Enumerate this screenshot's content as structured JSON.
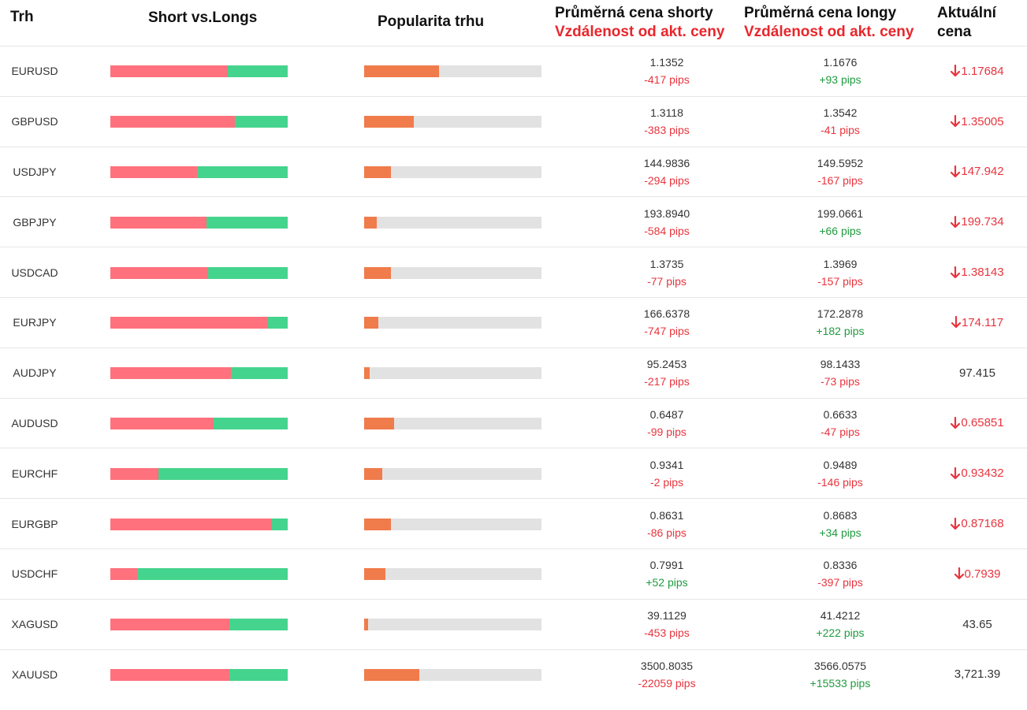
{
  "headers": {
    "market": "Trh",
    "short_vs_longs": "Short vs.Longs",
    "popularity": "Popularita trhu",
    "avg_short": "Průměrná cena shorty",
    "avg_short_sub": "Vzdálenost od akt. ceny",
    "avg_long": "Průměrná cena longy",
    "avg_long_sub": "Vzdálenost od akt. ceny",
    "current_1": "Aktuální",
    "current_2": "cena"
  },
  "colors": {
    "short": "#ff717d",
    "long": "#45d48d",
    "popularity": "#f07b4b",
    "track": "#e2e2e2",
    "negative": "#e8343d",
    "positive": "#1f9b3f"
  },
  "rows": [
    {
      "market": "EURUSD",
      "short_pct": 66,
      "popularity_pct": 42,
      "short_price": "1.1352",
      "short_pips": "-417 pips",
      "long_price": "1.1676",
      "long_pips": "+93 pips",
      "current": "1.17684",
      "arrow": "down-arrow-icon"
    },
    {
      "market": "GBPUSD",
      "short_pct": 70,
      "popularity_pct": 28,
      "short_price": "1.3118",
      "short_pips": "-383 pips",
      "long_price": "1.3542",
      "long_pips": "-41 pips",
      "current": "1.35005",
      "arrow": "down-arrow-icon"
    },
    {
      "market": "USDJPY",
      "short_pct": 49,
      "popularity_pct": 15,
      "short_price": "144.9836",
      "short_pips": "-294 pips",
      "long_price": "149.5952",
      "long_pips": "-167 pips",
      "current": "147.942",
      "arrow": "down-arrow-icon"
    },
    {
      "market": "GBPJPY",
      "short_pct": 54,
      "popularity_pct": 7,
      "short_price": "193.8940",
      "short_pips": "-584 pips",
      "long_price": "199.0661",
      "long_pips": "+66 pips",
      "current": "199.734",
      "arrow": "down-arrow-icon"
    },
    {
      "market": "USDCAD",
      "short_pct": 55,
      "popularity_pct": 15,
      "short_price": "1.3735",
      "short_pips": "-77 pips",
      "long_price": "1.3969",
      "long_pips": "-157 pips",
      "current": "1.38143",
      "arrow": "down-arrow-icon"
    },
    {
      "market": "EURJPY",
      "short_pct": 89,
      "popularity_pct": 8,
      "short_price": "166.6378",
      "short_pips": "-747 pips",
      "long_price": "172.2878",
      "long_pips": "+182 pips",
      "current": "174.117",
      "arrow": "down-arrow-icon"
    },
    {
      "market": "AUDJPY",
      "short_pct": 68,
      "popularity_pct": 3,
      "short_price": "95.2453",
      "short_pips": "-217 pips",
      "long_price": "98.1433",
      "long_pips": "-73 pips",
      "current": "97.415",
      "arrow": ""
    },
    {
      "market": "AUDUSD",
      "short_pct": 58,
      "popularity_pct": 17,
      "short_price": "0.6487",
      "short_pips": "-99 pips",
      "long_price": "0.6633",
      "long_pips": "-47 pips",
      "current": "0.65851",
      "arrow": "down-arrow-icon"
    },
    {
      "market": "EURCHF",
      "short_pct": 27,
      "popularity_pct": 10,
      "short_price": "0.9341",
      "short_pips": "-2 pips",
      "long_price": "0.9489",
      "long_pips": "-146 pips",
      "current": "0.93432",
      "arrow": "down-arrow-icon"
    },
    {
      "market": "EURGBP",
      "short_pct": 91,
      "popularity_pct": 15,
      "short_price": "0.8631",
      "short_pips": "-86 pips",
      "long_price": "0.8683",
      "long_pips": "+34 pips",
      "current": "0.87168",
      "arrow": "down-arrow-icon"
    },
    {
      "market": "USDCHF",
      "short_pct": 15,
      "popularity_pct": 12,
      "short_price": "0.7991",
      "short_pips": "+52 pips",
      "long_price": "0.8336",
      "long_pips": "-397 pips",
      "current": "0.7939",
      "arrow": "down-arrow-icon"
    },
    {
      "market": "XAGUSD",
      "short_pct": 67,
      "popularity_pct": 2,
      "short_price": "39.1129",
      "short_pips": "-453 pips",
      "long_price": "41.4212",
      "long_pips": "+222 pips",
      "current": "43.65",
      "arrow": ""
    },
    {
      "market": "XAUUSD",
      "short_pct": 67,
      "popularity_pct": 31,
      "short_price": "3500.8035",
      "short_pips": "-22059 pips",
      "long_price": "3566.0575",
      "long_pips": "+15533 pips",
      "current": "3,721.39",
      "arrow": ""
    }
  ]
}
